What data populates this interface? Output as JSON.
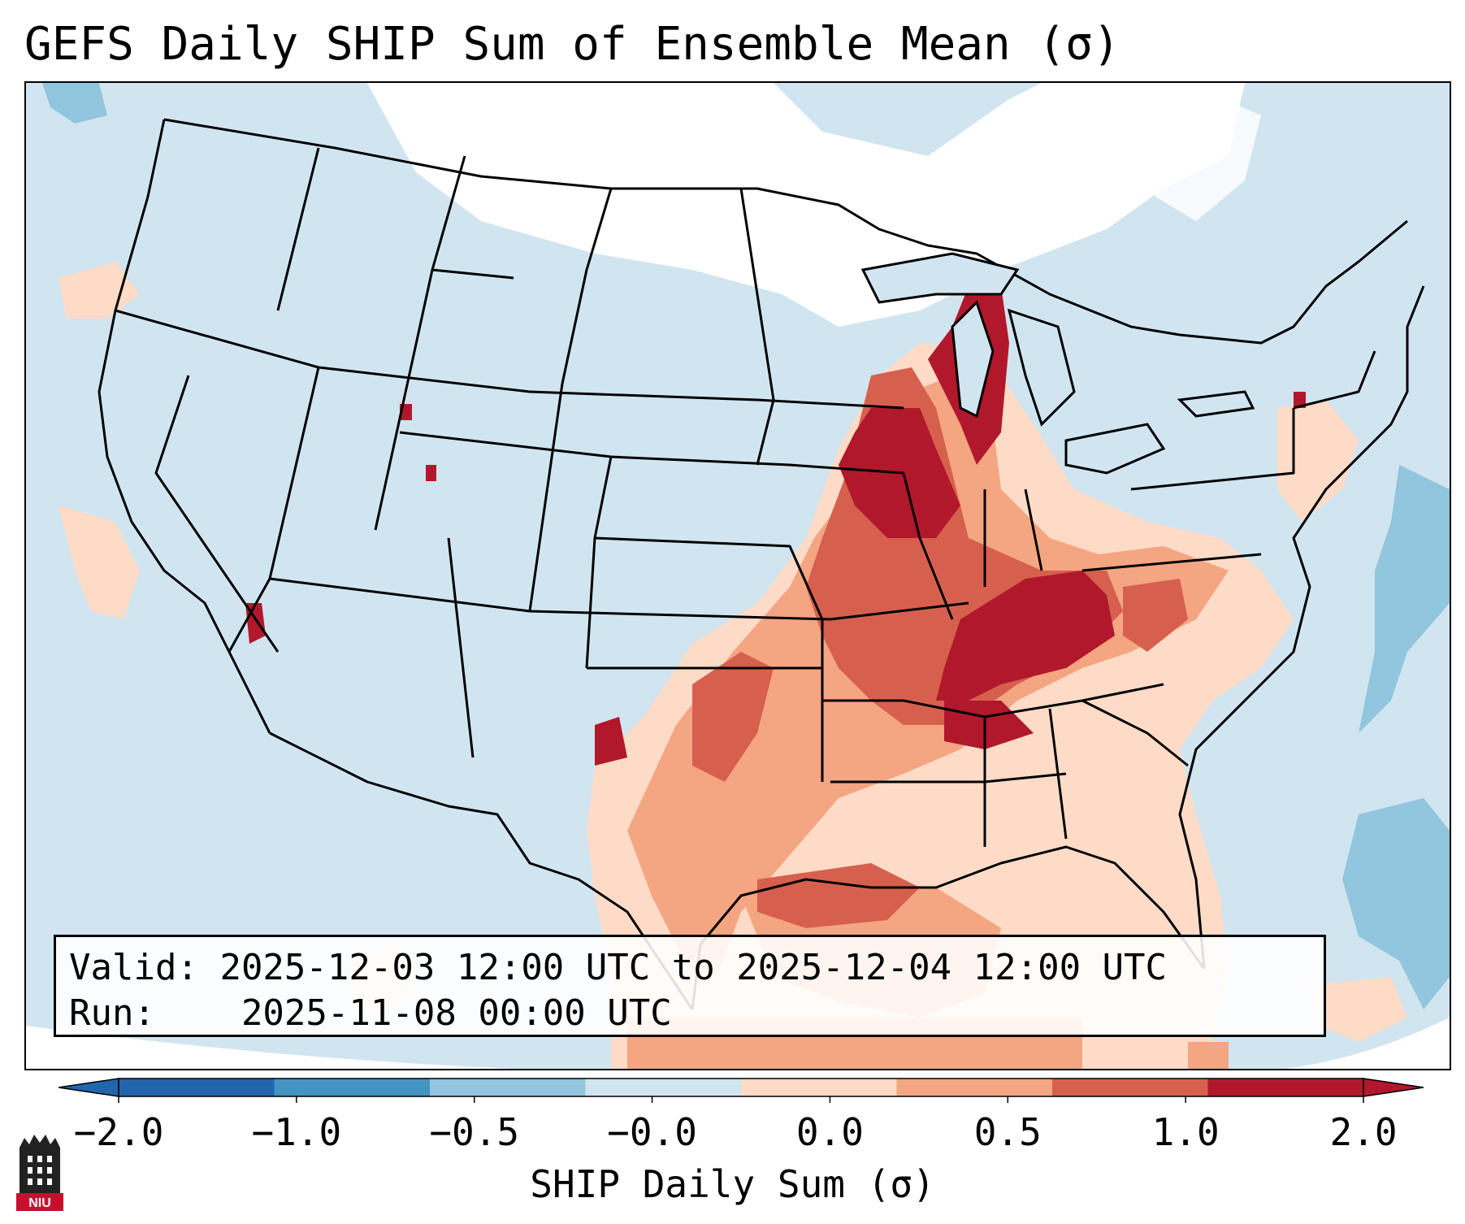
{
  "title": "GEFS Daily SHIP Sum of Ensemble Mean (σ)",
  "info": {
    "valid_label": "Valid:",
    "valid_value": "2025-12-03 12:00 UTC to 2025-12-04 12:00 UTC",
    "run_label": "Run:",
    "run_value": "2025-11-08 00:00 UTC"
  },
  "colorbar": {
    "label": "SHIP Daily Sum (σ)",
    "ticks": [
      "−2.0",
      "−1.0",
      "−0.5",
      "−0.0",
      "0.0",
      "0.5",
      "1.0",
      "2.0"
    ],
    "colors": [
      "#2166ac",
      "#4393c3",
      "#92c5de",
      "#d1e5f0",
      "#fddbc7",
      "#f4a582",
      "#d6604d",
      "#b2182b"
    ],
    "extend": "both"
  },
  "map": {
    "projection": "Lambert Conformal, Continental United States",
    "background_value_color": "#d1e5f0",
    "overlays": [
      "coastlines",
      "state borders",
      "country borders"
    ],
    "highlight_regions": [
      "Upper Midwest (Wisconsin, Michigan, Illinois): ≥ 2.0 σ",
      "Ohio/Tennessee Valley (Kentucky, Tennessee): ≥ 2.0 σ",
      "Southern Plains to Gulf Coast: 0.5–2.0 σ"
    ]
  },
  "logo": {
    "text": "NIU",
    "icon": "niu-tower-logo"
  }
}
